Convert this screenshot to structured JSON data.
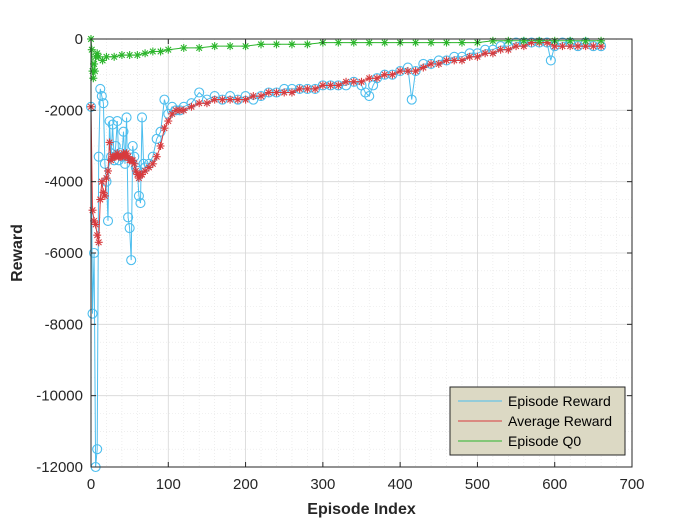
{
  "chart_data": {
    "type": "line",
    "title": "",
    "xlabel": "Episode Index",
    "ylabel": "Reward",
    "xlim": [
      0,
      700
    ],
    "ylim": [
      -12000,
      0
    ],
    "x_ticks": [
      "0",
      "100",
      "200",
      "300",
      "400",
      "500",
      "600",
      "700"
    ],
    "y_ticks": [
      "0",
      "-2000",
      "-4000",
      "-6000",
      "-8000",
      "-10000",
      "-12000"
    ],
    "grid": true,
    "minor_grid": true,
    "legend_position": "bottom-right",
    "series": [
      {
        "name": "Episode Reward",
        "color": "#4DBEEE",
        "marker": "circle",
        "points": [
          [
            0,
            -1900
          ],
          [
            2,
            -7700
          ],
          [
            4,
            -6000
          ],
          [
            6,
            -12000
          ],
          [
            8,
            -11500
          ],
          [
            10,
            -3300
          ],
          [
            12,
            -1400
          ],
          [
            14,
            -1600
          ],
          [
            16,
            -1800
          ],
          [
            18,
            -3500
          ],
          [
            20,
            -4000
          ],
          [
            22,
            -5100
          ],
          [
            24,
            -2300
          ],
          [
            26,
            -3300
          ],
          [
            28,
            -2400
          ],
          [
            30,
            -3400
          ],
          [
            32,
            -3000
          ],
          [
            34,
            -2300
          ],
          [
            36,
            -3400
          ],
          [
            38,
            -3200
          ],
          [
            40,
            -3300
          ],
          [
            42,
            -2600
          ],
          [
            44,
            -3500
          ],
          [
            46,
            -2200
          ],
          [
            48,
            -5000
          ],
          [
            50,
            -5300
          ],
          [
            52,
            -6200
          ],
          [
            54,
            -3000
          ],
          [
            56,
            -3300
          ],
          [
            58,
            -3600
          ],
          [
            60,
            -3700
          ],
          [
            62,
            -4400
          ],
          [
            64,
            -4600
          ],
          [
            66,
            -2200
          ],
          [
            68,
            -3500
          ],
          [
            70,
            -3600
          ],
          [
            75,
            -3500
          ],
          [
            80,
            -3300
          ],
          [
            85,
            -2800
          ],
          [
            90,
            -2600
          ],
          [
            95,
            -1700
          ],
          [
            100,
            -2100
          ],
          [
            105,
            -1900
          ],
          [
            110,
            -2000
          ],
          [
            115,
            -2000
          ],
          [
            120,
            -1900
          ],
          [
            130,
            -1800
          ],
          [
            140,
            -1500
          ],
          [
            150,
            -1700
          ],
          [
            160,
            -1600
          ],
          [
            170,
            -1700
          ],
          [
            180,
            -1600
          ],
          [
            190,
            -1700
          ],
          [
            200,
            -1600
          ],
          [
            210,
            -1700
          ],
          [
            220,
            -1600
          ],
          [
            230,
            -1500
          ],
          [
            240,
            -1500
          ],
          [
            250,
            -1400
          ],
          [
            260,
            -1400
          ],
          [
            270,
            -1400
          ],
          [
            280,
            -1400
          ],
          [
            290,
            -1400
          ],
          [
            300,
            -1300
          ],
          [
            310,
            -1300
          ],
          [
            320,
            -1300
          ],
          [
            330,
            -1300
          ],
          [
            340,
            -1200
          ],
          [
            350,
            -1300
          ],
          [
            355,
            -1500
          ],
          [
            360,
            -1600
          ],
          [
            365,
            -1300
          ],
          [
            370,
            -1100
          ],
          [
            380,
            -1000
          ],
          [
            390,
            -1000
          ],
          [
            400,
            -900
          ],
          [
            410,
            -800
          ],
          [
            415,
            -1700
          ],
          [
            420,
            -900
          ],
          [
            430,
            -700
          ],
          [
            440,
            -700
          ],
          [
            450,
            -600
          ],
          [
            460,
            -600
          ],
          [
            470,
            -500
          ],
          [
            480,
            -500
          ],
          [
            490,
            -400
          ],
          [
            500,
            -400
          ],
          [
            510,
            -300
          ],
          [
            520,
            -300
          ],
          [
            530,
            -200
          ],
          [
            540,
            -200
          ],
          [
            550,
            -100
          ],
          [
            560,
            -100
          ],
          [
            570,
            -100
          ],
          [
            580,
            -100
          ],
          [
            590,
            -100
          ],
          [
            595,
            -600
          ],
          [
            600,
            -200
          ],
          [
            610,
            -100
          ],
          [
            620,
            -100
          ],
          [
            630,
            -200
          ],
          [
            640,
            -100
          ],
          [
            650,
            -200
          ],
          [
            660,
            -200
          ]
        ]
      },
      {
        "name": "Average Reward",
        "color": "#D73B3E",
        "marker": "asterisk",
        "points": [
          [
            0,
            -1900
          ],
          [
            2,
            -4800
          ],
          [
            4,
            -5100
          ],
          [
            6,
            -5200
          ],
          [
            8,
            -5500
          ],
          [
            10,
            -5700
          ],
          [
            12,
            -4500
          ],
          [
            14,
            -4000
          ],
          [
            16,
            -4300
          ],
          [
            18,
            -4400
          ],
          [
            20,
            -3900
          ],
          [
            22,
            -3700
          ],
          [
            24,
            -2900
          ],
          [
            26,
            -3400
          ],
          [
            28,
            -3300
          ],
          [
            30,
            -3300
          ],
          [
            32,
            -3300
          ],
          [
            34,
            -3200
          ],
          [
            36,
            -3300
          ],
          [
            38,
            -3300
          ],
          [
            40,
            -3300
          ],
          [
            42,
            -3200
          ],
          [
            44,
            -3300
          ],
          [
            46,
            -3200
          ],
          [
            48,
            -3300
          ],
          [
            50,
            -3400
          ],
          [
            52,
            -3400
          ],
          [
            54,
            -3400
          ],
          [
            56,
            -3500
          ],
          [
            58,
            -3700
          ],
          [
            60,
            -3800
          ],
          [
            62,
            -3900
          ],
          [
            64,
            -3800
          ],
          [
            66,
            -3800
          ],
          [
            70,
            -3700
          ],
          [
            75,
            -3600
          ],
          [
            80,
            -3500
          ],
          [
            85,
            -3300
          ],
          [
            90,
            -3000
          ],
          [
            95,
            -2500
          ],
          [
            100,
            -2300
          ],
          [
            105,
            -2100
          ],
          [
            110,
            -2000
          ],
          [
            115,
            -2000
          ],
          [
            120,
            -2000
          ],
          [
            130,
            -1900
          ],
          [
            140,
            -1800
          ],
          [
            150,
            -1800
          ],
          [
            160,
            -1700
          ],
          [
            170,
            -1700
          ],
          [
            180,
            -1700
          ],
          [
            190,
            -1700
          ],
          [
            200,
            -1700
          ],
          [
            210,
            -1600
          ],
          [
            220,
            -1600
          ],
          [
            230,
            -1500
          ],
          [
            240,
            -1500
          ],
          [
            250,
            -1500
          ],
          [
            260,
            -1500
          ],
          [
            270,
            -1400
          ],
          [
            280,
            -1400
          ],
          [
            290,
            -1400
          ],
          [
            300,
            -1300
          ],
          [
            310,
            -1300
          ],
          [
            320,
            -1300
          ],
          [
            330,
            -1200
          ],
          [
            340,
            -1200
          ],
          [
            350,
            -1200
          ],
          [
            360,
            -1100
          ],
          [
            370,
            -1100
          ],
          [
            380,
            -1000
          ],
          [
            390,
            -1000
          ],
          [
            400,
            -900
          ],
          [
            410,
            -900
          ],
          [
            420,
            -900
          ],
          [
            430,
            -800
          ],
          [
            440,
            -700
          ],
          [
            450,
            -700
          ],
          [
            460,
            -600
          ],
          [
            470,
            -600
          ],
          [
            480,
            -600
          ],
          [
            490,
            -500
          ],
          [
            500,
            -500
          ],
          [
            510,
            -400
          ],
          [
            520,
            -400
          ],
          [
            530,
            -300
          ],
          [
            540,
            -300
          ],
          [
            550,
            -200
          ],
          [
            560,
            -200
          ],
          [
            570,
            -100
          ],
          [
            580,
            -100
          ],
          [
            590,
            -100
          ],
          [
            600,
            -200
          ],
          [
            610,
            -200
          ],
          [
            620,
            -200
          ],
          [
            630,
            -200
          ],
          [
            640,
            -200
          ],
          [
            650,
            -200
          ],
          [
            660,
            -200
          ]
        ]
      },
      {
        "name": "Episode Q0",
        "color": "#2BB52B",
        "marker": "asterisk",
        "points": [
          [
            0,
            0
          ],
          [
            1,
            -300
          ],
          [
            2,
            -900
          ],
          [
            3,
            -1100
          ],
          [
            4,
            -700
          ],
          [
            5,
            -900
          ],
          [
            6,
            -500
          ],
          [
            8,
            -400
          ],
          [
            10,
            -500
          ],
          [
            15,
            -600
          ],
          [
            20,
            -500
          ],
          [
            30,
            -500
          ],
          [
            40,
            -450
          ],
          [
            50,
            -450
          ],
          [
            60,
            -450
          ],
          [
            70,
            -400
          ],
          [
            80,
            -350
          ],
          [
            90,
            -350
          ],
          [
            100,
            -300
          ],
          [
            120,
            -250
          ],
          [
            140,
            -250
          ],
          [
            160,
            -200
          ],
          [
            180,
            -200
          ],
          [
            200,
            -200
          ],
          [
            220,
            -150
          ],
          [
            240,
            -150
          ],
          [
            260,
            -150
          ],
          [
            280,
            -150
          ],
          [
            300,
            -100
          ],
          [
            320,
            -100
          ],
          [
            340,
            -100
          ],
          [
            360,
            -100
          ],
          [
            380,
            -100
          ],
          [
            400,
            -100
          ],
          [
            420,
            -100
          ],
          [
            440,
            -100
          ],
          [
            460,
            -100
          ],
          [
            480,
            -100
          ],
          [
            500,
            -100
          ],
          [
            520,
            -50
          ],
          [
            540,
            -50
          ],
          [
            560,
            -50
          ],
          [
            580,
            -50
          ],
          [
            600,
            -50
          ],
          [
            620,
            -50
          ],
          [
            640,
            -50
          ],
          [
            660,
            -50
          ]
        ]
      }
    ]
  }
}
